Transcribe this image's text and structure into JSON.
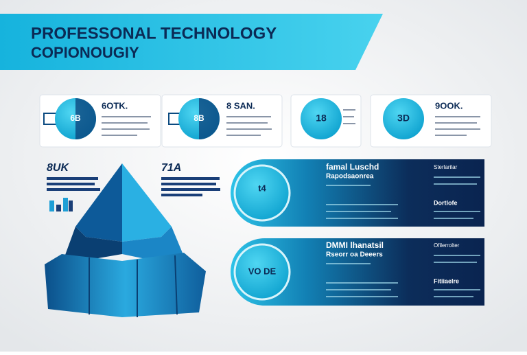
{
  "header": {
    "title": "PROFESSONAL TECHNOLOGY",
    "subtitle": "COPIONOUGIY"
  },
  "cards": [
    {
      "badge": "6B",
      "heading": "6OTK."
    },
    {
      "badge": "8B",
      "heading": "8 SAN."
    },
    {
      "badge": "18"
    },
    {
      "badge": "3D",
      "heading": "9OOK."
    }
  ],
  "left": {
    "label_a": "8UK",
    "label_b": "71A"
  },
  "panels": [
    {
      "badge": "t4",
      "heading": "famal Luschd",
      "subheading": "Rapodsaonrea",
      "side": "Sterlarilar",
      "side_b": "Dortlofe"
    },
    {
      "badge": "VO DE",
      "heading": "DMMI lhanatsil",
      "subheading": "Rseorr oa Deeers",
      "side": "Ofilerrolter",
      "side_b": "Fitiiaelre"
    }
  ]
}
